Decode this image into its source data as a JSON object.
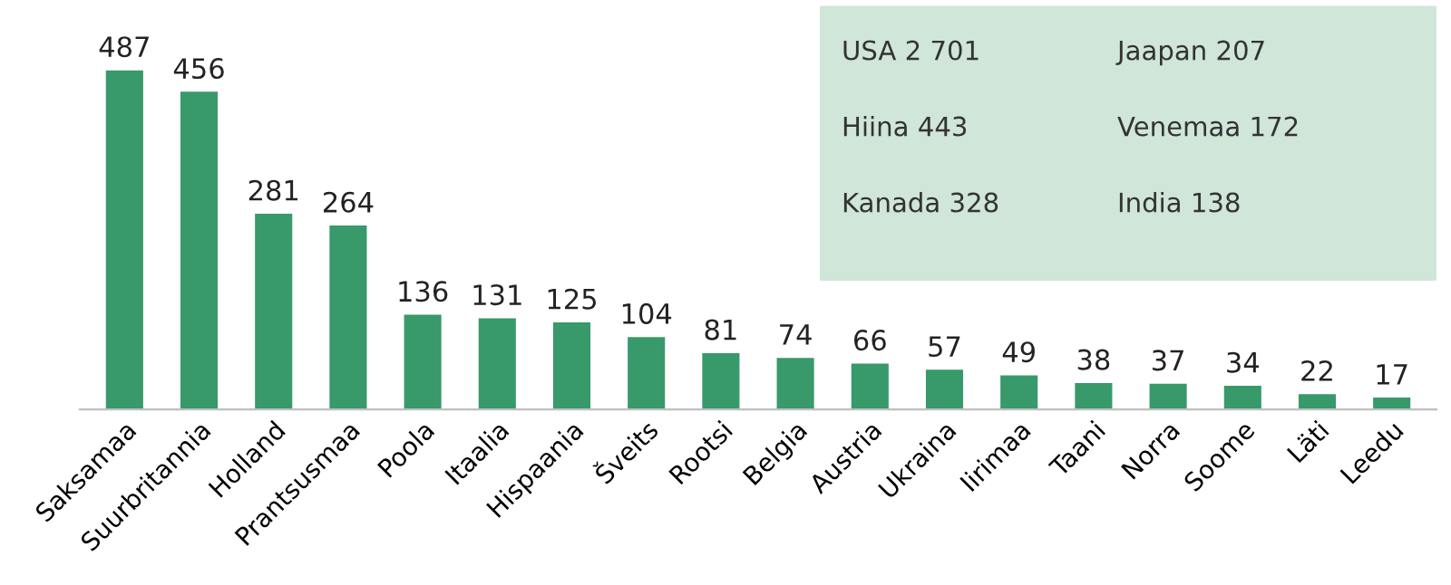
{
  "chart_data": {
    "type": "bar",
    "categories": [
      "Saksamaa",
      "Suurbritannia",
      "Holland",
      "Prantsusmaa",
      "Poola",
      "Itaalia",
      "Hispaania",
      "Šveits",
      "Rootsi",
      "Belgia",
      "Austria",
      "Ukraina",
      "Iirimaa",
      "Taani",
      "Norra",
      "Soome",
      "Läti",
      "Leedu"
    ],
    "values": [
      487,
      456,
      281,
      264,
      136,
      131,
      125,
      104,
      81,
      74,
      66,
      57,
      49,
      38,
      37,
      34,
      22,
      17
    ],
    "color": "#38996a",
    "data_labels": true,
    "grid": false,
    "annotations": [
      "USA 2 701",
      "Jaapan 207",
      "Hiina 443",
      "Venemaa 172",
      "Kanada 328",
      "India 138"
    ]
  }
}
